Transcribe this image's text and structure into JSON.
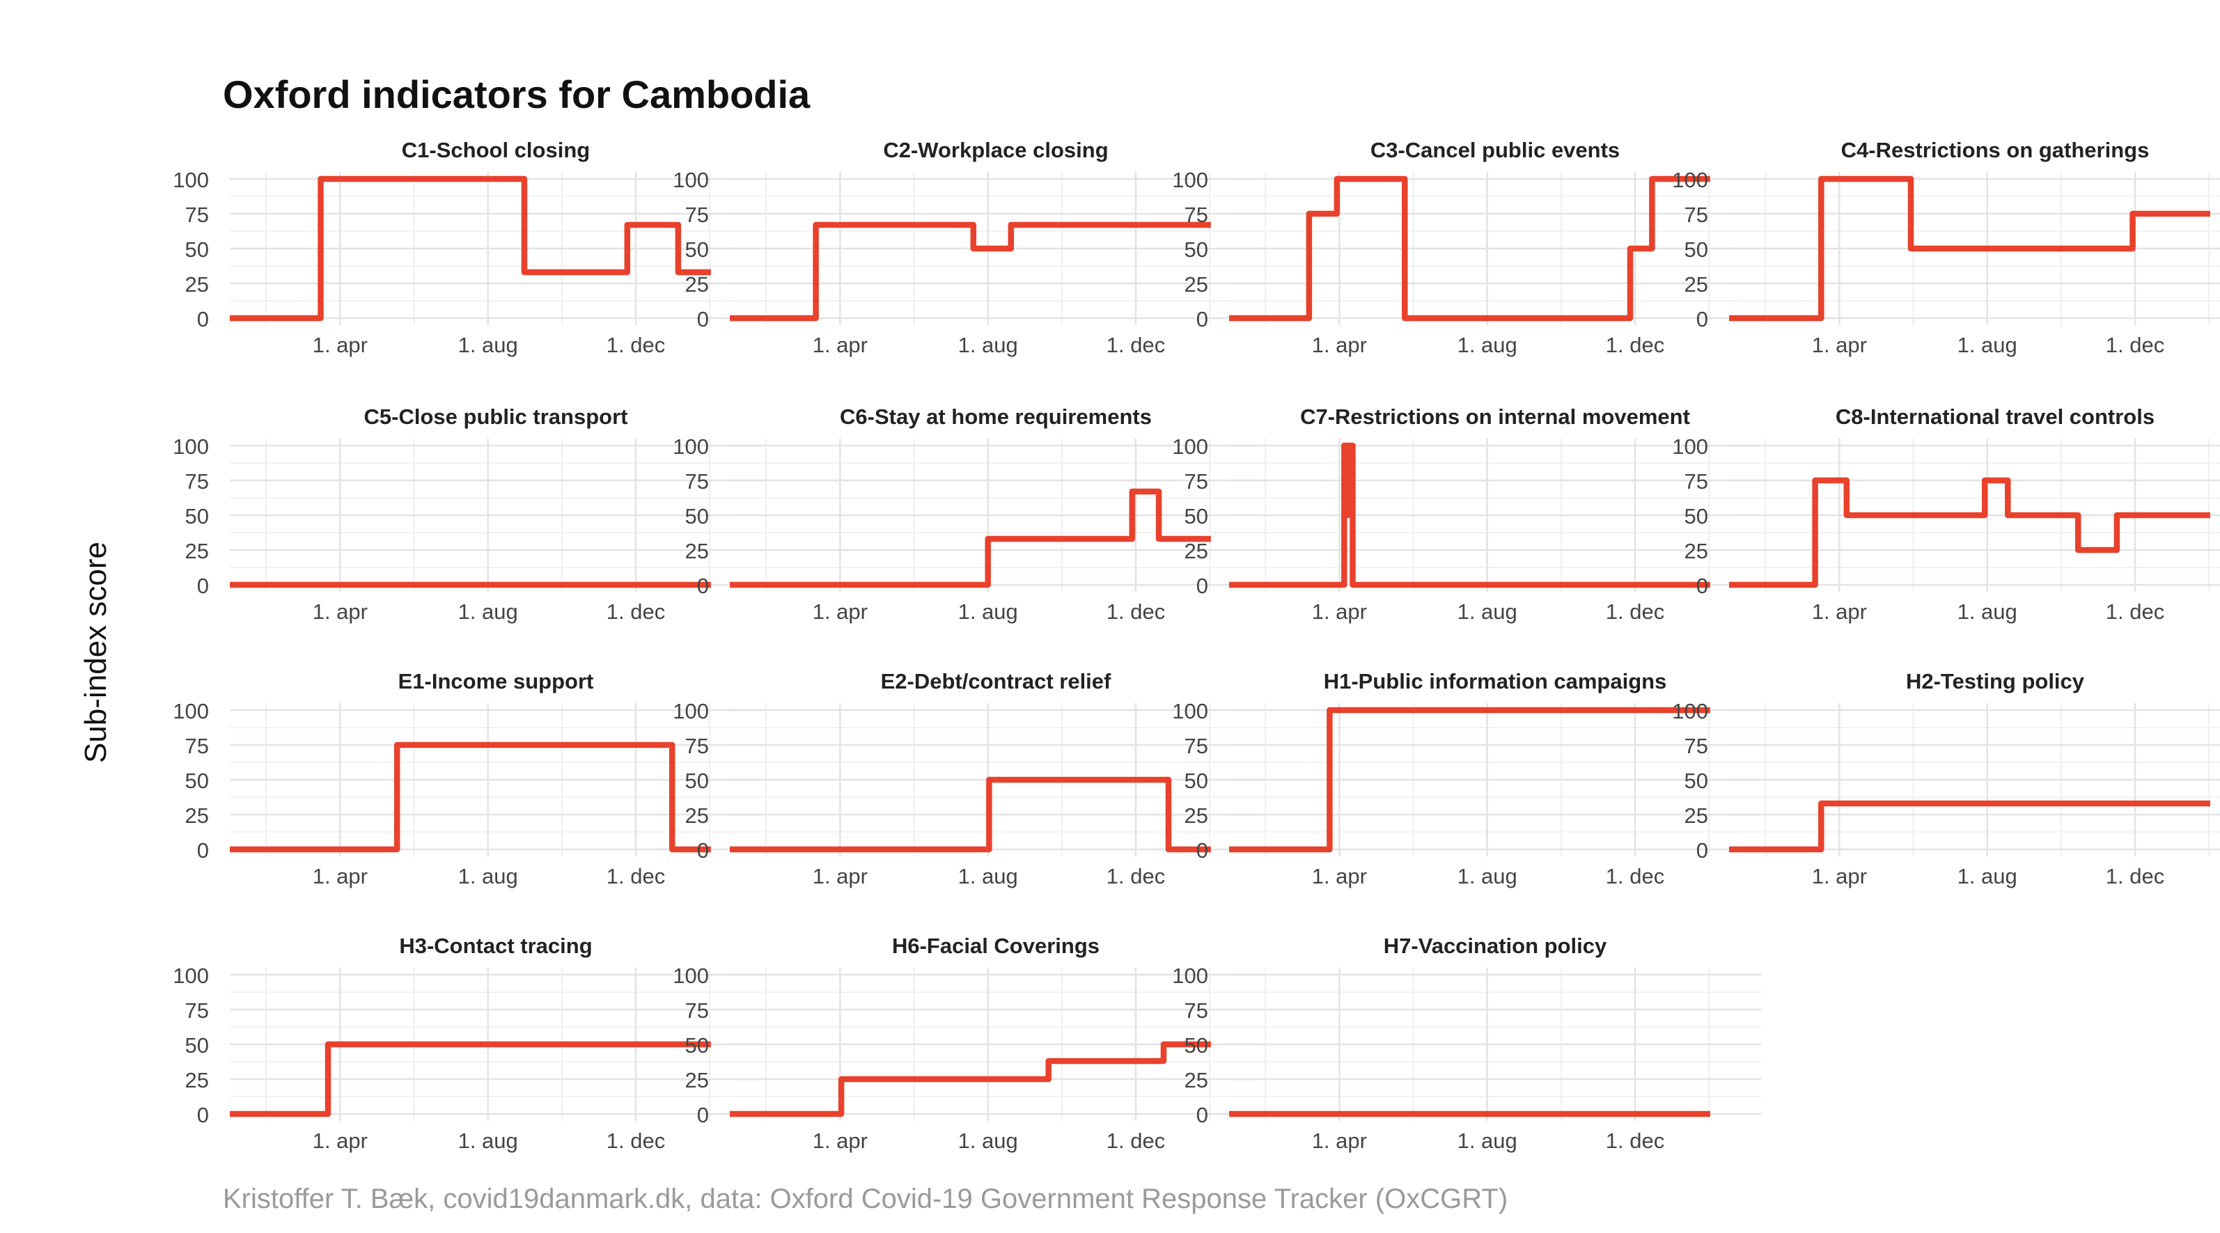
{
  "title": "Oxford indicators for Cambodia",
  "ylabel": "Sub-index score",
  "caption": "Kristoffer T. Bæk, covid19danmark.dk, data: Oxford Covid-19 Government Response Tracker (OxCGRT)",
  "colors": {
    "line": "#E8412C",
    "grid": "#E3E3E3",
    "text": "#222222",
    "axis_text": "#444444",
    "caption": "#9A9A9A"
  },
  "chart_data": [
    {
      "type": "line",
      "title": "C1-School closing",
      "x_ticks": [
        "1. apr",
        "1. aug",
        "1. dec"
      ],
      "y_ticks": [
        "0",
        "25",
        "50",
        "75",
        "100"
      ],
      "ylim": [
        0,
        100
      ],
      "xlim": [
        "2020-01-01",
        "2021-03-15"
      ],
      "x": [
        "2020-01-01",
        "2020-03-16",
        "2020-03-16",
        "2020-08-31",
        "2020-08-31",
        "2020-11-24",
        "2020-11-24",
        "2021-01-05",
        "2021-01-05",
        "2021-02-01"
      ],
      "y": [
        0,
        0,
        100,
        100,
        33,
        33,
        67,
        67,
        33,
        33
      ]
    },
    {
      "type": "line",
      "title": "C2-Workplace closing",
      "x_ticks": [
        "1. apr",
        "1. aug",
        "1. dec"
      ],
      "y_ticks": [
        "0",
        "25",
        "50",
        "75",
        "100"
      ],
      "ylim": [
        0,
        100
      ],
      "xlim": [
        "2020-01-01",
        "2021-03-15"
      ],
      "x": [
        "2020-01-01",
        "2020-03-12",
        "2020-03-12",
        "2020-07-20",
        "2020-07-20",
        "2020-08-20",
        "2020-08-20",
        "2021-02-01"
      ],
      "y": [
        0,
        0,
        67,
        67,
        50,
        50,
        67,
        67
      ]
    },
    {
      "type": "line",
      "title": "C3-Cancel public events",
      "x_ticks": [
        "1. apr",
        "1. aug",
        "1. dec"
      ],
      "y_ticks": [
        "0",
        "25",
        "50",
        "75",
        "100"
      ],
      "ylim": [
        0,
        100
      ],
      "xlim": [
        "2020-01-01",
        "2021-03-15"
      ],
      "x": [
        "2020-01-01",
        "2020-03-07",
        "2020-03-07",
        "2020-03-30",
        "2020-03-30",
        "2020-05-25",
        "2020-05-25",
        "2020-11-27",
        "2020-11-27",
        "2020-12-15",
        "2020-12-15",
        "2021-02-01"
      ],
      "y": [
        0,
        0,
        75,
        75,
        100,
        100,
        0,
        0,
        50,
        50,
        100,
        100
      ]
    },
    {
      "type": "line",
      "title": "C4-Restrictions on gatherings",
      "x_ticks": [
        "1. apr",
        "1. aug",
        "1. dec"
      ],
      "y_ticks": [
        "0",
        "25",
        "50",
        "75",
        "100"
      ],
      "ylim": [
        0,
        100
      ],
      "xlim": [
        "2020-01-01",
        "2021-03-15"
      ],
      "x": [
        "2020-01-01",
        "2020-03-17",
        "2020-03-17",
        "2020-05-30",
        "2020-05-30",
        "2020-11-29",
        "2020-11-29",
        "2021-02-01"
      ],
      "y": [
        0,
        0,
        100,
        100,
        50,
        50,
        75,
        75
      ]
    },
    {
      "type": "line",
      "title": "C5-Close public transport",
      "x_ticks": [
        "1. apr",
        "1. aug",
        "1. dec"
      ],
      "y_ticks": [
        "0",
        "25",
        "50",
        "75",
        "100"
      ],
      "ylim": [
        0,
        100
      ],
      "xlim": [
        "2020-01-01",
        "2021-03-15"
      ],
      "x": [
        "2020-01-01",
        "2021-02-01"
      ],
      "y": [
        0,
        0
      ]
    },
    {
      "type": "line",
      "title": "C6-Stay at home requirements",
      "x_ticks": [
        "1. apr",
        "1. aug",
        "1. dec"
      ],
      "y_ticks": [
        "0",
        "25",
        "50",
        "75",
        "100"
      ],
      "ylim": [
        0,
        100
      ],
      "xlim": [
        "2020-01-01",
        "2021-03-15"
      ],
      "x": [
        "2020-01-01",
        "2020-08-01",
        "2020-08-01",
        "2020-11-28",
        "2020-11-28",
        "2020-12-20",
        "2020-12-20",
        "2021-02-01"
      ],
      "y": [
        0,
        0,
        33,
        33,
        67,
        67,
        33,
        33
      ]
    },
    {
      "type": "line",
      "title": "C7-Restrictions on internal movement",
      "x_ticks": [
        "1. apr",
        "1. aug",
        "1. dec"
      ],
      "y_ticks": [
        "0",
        "25",
        "50",
        "75",
        "100"
      ],
      "ylim": [
        0,
        100
      ],
      "xlim": [
        "2020-01-01",
        "2021-03-15"
      ],
      "x": [
        "2020-01-01",
        "2020-04-05",
        "2020-04-05",
        "2020-04-07",
        "2020-04-07",
        "2020-04-08",
        "2020-04-08",
        "2020-04-12",
        "2020-04-12",
        "2021-02-01"
      ],
      "y": [
        0,
        0,
        100,
        100,
        50,
        50,
        100,
        100,
        0,
        0
      ]
    },
    {
      "type": "line",
      "title": "C8-International travel controls",
      "x_ticks": [
        "1. apr",
        "1. aug",
        "1. dec"
      ],
      "y_ticks": [
        "0",
        "25",
        "50",
        "75",
        "100"
      ],
      "ylim": [
        0,
        100
      ],
      "xlim": [
        "2020-01-01",
        "2021-03-15"
      ],
      "x": [
        "2020-01-01",
        "2020-03-12",
        "2020-03-12",
        "2020-04-07",
        "2020-04-07",
        "2020-07-30",
        "2020-07-30",
        "2020-08-18",
        "2020-08-18",
        "2020-10-15",
        "2020-10-15",
        "2020-11-16",
        "2020-11-16",
        "2021-02-01"
      ],
      "y": [
        0,
        0,
        75,
        75,
        50,
        50,
        75,
        75,
        50,
        50,
        25,
        25,
        50,
        50
      ]
    },
    {
      "type": "line",
      "title": "E1-Income support",
      "x_ticks": [
        "1. apr",
        "1. aug",
        "1. dec"
      ],
      "y_ticks": [
        "0",
        "25",
        "50",
        "75",
        "100"
      ],
      "ylim": [
        0,
        100
      ],
      "xlim": [
        "2020-01-01",
        "2021-03-15"
      ],
      "x": [
        "2020-01-01",
        "2020-05-18",
        "2020-05-18",
        "2020-12-31",
        "2020-12-31",
        "2021-02-01"
      ],
      "y": [
        0,
        0,
        75,
        75,
        0,
        0
      ]
    },
    {
      "type": "line",
      "title": "E2-Debt/contract relief",
      "x_ticks": [
        "1. apr",
        "1. aug",
        "1. dec"
      ],
      "y_ticks": [
        "0",
        "25",
        "50",
        "75",
        "100"
      ],
      "ylim": [
        0,
        100
      ],
      "xlim": [
        "2020-01-01",
        "2021-03-15"
      ],
      "x": [
        "2020-01-01",
        "2020-08-02",
        "2020-08-02",
        "2020-12-28",
        "2020-12-28",
        "2021-02-01"
      ],
      "y": [
        0,
        0,
        50,
        50,
        0,
        0
      ]
    },
    {
      "type": "line",
      "title": "H1-Public information campaigns",
      "x_ticks": [
        "1. apr",
        "1. aug",
        "1. dec"
      ],
      "y_ticks": [
        "0",
        "25",
        "50",
        "75",
        "100"
      ],
      "ylim": [
        0,
        100
      ],
      "xlim": [
        "2020-01-01",
        "2021-03-15"
      ],
      "x": [
        "2020-01-01",
        "2020-03-24",
        "2020-03-24",
        "2021-02-01"
      ],
      "y": [
        0,
        0,
        100,
        100
      ]
    },
    {
      "type": "line",
      "title": "H2-Testing policy",
      "x_ticks": [
        "1. apr",
        "1. aug",
        "1. dec"
      ],
      "y_ticks": [
        "0",
        "25",
        "50",
        "75",
        "100"
      ],
      "ylim": [
        0,
        100
      ],
      "xlim": [
        "2020-01-01",
        "2021-03-15"
      ],
      "x": [
        "2020-01-01",
        "2020-03-17",
        "2020-03-17",
        "2021-02-01"
      ],
      "y": [
        0,
        0,
        33,
        33
      ]
    },
    {
      "type": "line",
      "title": "H3-Contact tracing",
      "x_ticks": [
        "1. apr",
        "1. aug",
        "1. dec"
      ],
      "y_ticks": [
        "0",
        "25",
        "50",
        "75",
        "100"
      ],
      "ylim": [
        0,
        100
      ],
      "xlim": [
        "2020-01-01",
        "2021-03-15"
      ],
      "x": [
        "2020-01-01",
        "2020-03-22",
        "2020-03-22",
        "2021-02-01"
      ],
      "y": [
        0,
        0,
        50,
        50
      ]
    },
    {
      "type": "line",
      "title": "H6-Facial Coverings",
      "x_ticks": [
        "1. apr",
        "1. aug",
        "1. dec"
      ],
      "y_ticks": [
        "0",
        "25",
        "50",
        "75",
        "100"
      ],
      "ylim": [
        0,
        100
      ],
      "xlim": [
        "2020-01-01",
        "2021-03-15"
      ],
      "x": [
        "2020-01-01",
        "2020-04-02",
        "2020-04-02",
        "2020-09-20",
        "2020-09-20",
        "2020-12-17",
        "2020-12-17",
        "2020-12-24",
        "2020-12-24",
        "2021-02-01"
      ],
      "y": [
        0,
        0,
        25,
        25,
        38,
        38,
        38,
        38,
        50,
        50
      ]
    },
    {
      "type": "line",
      "title": "H7-Vaccination policy",
      "x_ticks": [
        "1. apr",
        "1. aug",
        "1. dec"
      ],
      "y_ticks": [
        "0",
        "25",
        "50",
        "75",
        "100"
      ],
      "ylim": [
        0,
        100
      ],
      "xlim": [
        "2020-01-01",
        "2021-03-15"
      ],
      "x": [
        "2020-01-01",
        "2021-02-01"
      ],
      "y": [
        0,
        0
      ]
    }
  ]
}
